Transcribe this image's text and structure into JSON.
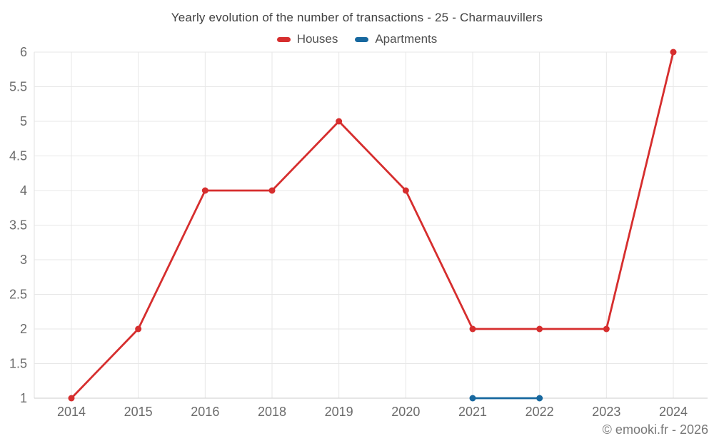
{
  "page": {
    "watermark": "© emooki.fr - 2026"
  },
  "chart_data": {
    "type": "line",
    "title": "Yearly evolution of the number of transactions - 25 - Charmauvillers",
    "categories": [
      "2014",
      "2015",
      "2016",
      "2018",
      "2019",
      "2020",
      "2021",
      "2022",
      "2023",
      "2024"
    ],
    "series": [
      {
        "name": "Houses",
        "color": "#d62e2e",
        "values": [
          1,
          2,
          4,
          4,
          5,
          4,
          2,
          2,
          2,
          6
        ]
      },
      {
        "name": "Apartments",
        "color": "#17689f",
        "values": [
          null,
          null,
          null,
          null,
          null,
          null,
          1,
          1,
          null,
          null
        ]
      }
    ],
    "xlabel": "",
    "ylabel": "",
    "ylim": [
      1,
      6
    ],
    "ytick_step": 0.5,
    "yticks": [
      1,
      1.5,
      2,
      2.5,
      3,
      3.5,
      4,
      4.5,
      5,
      5.5,
      6
    ],
    "grid": true,
    "legend_position": "top",
    "colors": {
      "grid": "#e7e7e7",
      "axis_bottom": "#cccccc",
      "axis_left": "#e0e0e0",
      "tick_label": "#6b6b6b"
    }
  }
}
